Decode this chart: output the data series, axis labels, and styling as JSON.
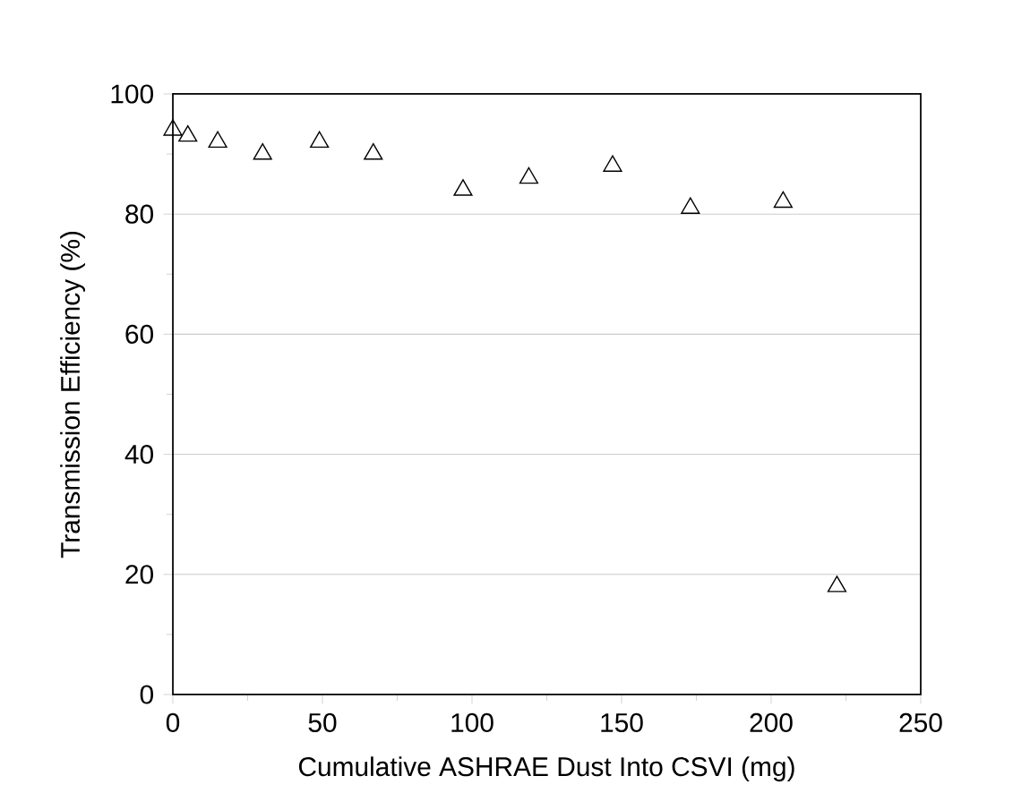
{
  "chart_data": {
    "type": "scatter",
    "xlabel": "Cumulative ASHRAE Dust Into CSVI (mg)",
    "ylabel": "Transmission Efficiency (%)",
    "x": [
      0,
      5,
      15,
      30,
      49,
      67,
      97,
      119,
      147,
      173,
      204,
      222
    ],
    "series": [
      {
        "color": "#000000",
        "values": [
          94,
          93,
          92,
          90,
          92,
          90,
          84,
          86,
          88,
          81,
          82,
          18
        ]
      }
    ],
    "xlim": [
      0,
      250
    ],
    "xticks": [
      0,
      50,
      100,
      150,
      200,
      250
    ],
    "ylim": [
      0,
      100
    ],
    "yticks": [
      0,
      20,
      40,
      60,
      80,
      100
    ],
    "grid": "y",
    "marker": "triangle"
  }
}
